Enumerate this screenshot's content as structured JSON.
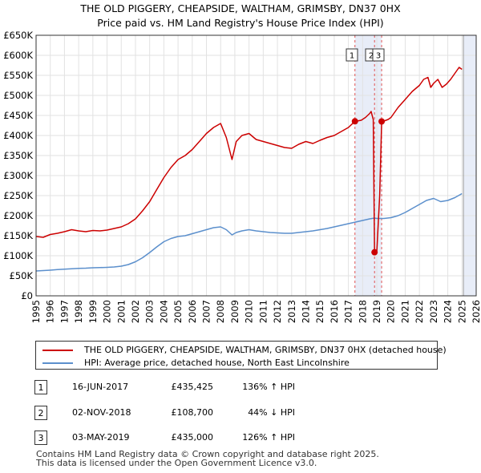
{
  "title_line1": "THE OLD PIGGERY, CHEAPSIDE, WALTHAM, GRIMSBY, DN37 0HX",
  "title_line2": "Price paid vs. HM Land Registry's House Price Index (HPI)",
  "legend": {
    "property_label": "THE OLD PIGGERY, CHEAPSIDE, WALTHAM, GRIMSBY, DN37 0HX (detached house)",
    "hpi_label": "HPI: Average price, detached house, North East Lincolnshire"
  },
  "sales": [
    {
      "num": "1",
      "date": "16-JUN-2017",
      "price": "£435,425",
      "hpi": "136% ↑ HPI"
    },
    {
      "num": "2",
      "date": "02-NOV-2018",
      "price": "£108,700",
      "hpi": "44% ↓ HPI"
    },
    {
      "num": "3",
      "date": "03-MAY-2019",
      "price": "£435,000",
      "hpi": "126% ↑ HPI"
    }
  ],
  "footer_line1": "Contains HM Land Registry data © Crown copyright and database right 2025.",
  "footer_line2": "This data is licensed under the Open Government Licence v3.0.",
  "colors": {
    "property": "#cc0000",
    "hpi": "#5b8fcc",
    "shade": "#e8edf8",
    "future": "#e8edf8",
    "grid": "#e2e2e2",
    "vline": "#e05555"
  },
  "chart_data": {
    "type": "line",
    "xlim": [
      1995,
      2026
    ],
    "ylim": [
      0,
      650000
    ],
    "x_ticks": [
      1995,
      1996,
      1997,
      1998,
      1999,
      2000,
      2001,
      2002,
      2003,
      2004,
      2005,
      2006,
      2007,
      2008,
      2009,
      2010,
      2011,
      2012,
      2013,
      2014,
      2015,
      2016,
      2017,
      2018,
      2019,
      2020,
      2021,
      2022,
      2023,
      2024,
      2025,
      2026
    ],
    "x_tick_labels": [
      "1995",
      "1996",
      "1997",
      "1998",
      "1999",
      "2000",
      "2001",
      "2002",
      "2003",
      "2004",
      "2005",
      "2006",
      "2007",
      "2008",
      "2009",
      "2010",
      "2011",
      "2012",
      "2013",
      "2014",
      "2015",
      "2016",
      "2017",
      "2018",
      "2019",
      "2020",
      "2021",
      "2022",
      "2023",
      "2024",
      "2025",
      "2026"
    ],
    "y_ticks": [
      0,
      50000,
      100000,
      150000,
      200000,
      250000,
      300000,
      350000,
      400000,
      450000,
      500000,
      550000,
      600000,
      650000
    ],
    "y_tick_labels": [
      "£0",
      "£50K",
      "£100K",
      "£150K",
      "£200K",
      "£250K",
      "£300K",
      "£350K",
      "£400K",
      "£450K",
      "£500K",
      "£550K",
      "£600K",
      "£650K"
    ],
    "shaded_range": [
      2017.46,
      2019.34
    ],
    "future_from": 2025.1,
    "sale_markers": [
      {
        "label": "1",
        "x": 2017.46,
        "y": 435425
      },
      {
        "label": "2",
        "x": 2018.84,
        "y": 108700
      },
      {
        "label": "3",
        "x": 2019.34,
        "y": 435000
      }
    ],
    "series": [
      {
        "name": "THE OLD PIGGERY, CHEAPSIDE, WALTHAM, GRIMSBY, DN37 0HX (detached house)",
        "x": [
          1995.0,
          1995.5,
          1996.0,
          1996.5,
          1997.0,
          1997.5,
          1998.0,
          1998.5,
          1999.0,
          1999.5,
          2000.0,
          2000.5,
          2001.0,
          2001.5,
          2002.0,
          2002.5,
          2003.0,
          2003.5,
          2004.0,
          2004.5,
          2005.0,
          2005.5,
          2006.0,
          2006.5,
          2007.0,
          2007.5,
          2008.0,
          2008.4,
          2008.8,
          2009.1,
          2009.5,
          2010.0,
          2010.5,
          2011.0,
          2011.5,
          2012.0,
          2012.5,
          2013.0,
          2013.5,
          2014.0,
          2014.5,
          2015.0,
          2015.5,
          2016.0,
          2016.5,
          2017.0,
          2017.46,
          2017.6,
          2017.9,
          2018.2,
          2018.5,
          2018.6,
          2018.75,
          2018.84,
          2019.0,
          2019.2,
          2019.34,
          2019.5,
          2019.8,
          2020.0,
          2020.5,
          2021.0,
          2021.5,
          2022.0,
          2022.3,
          2022.6,
          2022.8,
          2023.0,
          2023.3,
          2023.6,
          2023.9,
          2024.2,
          2024.5,
          2024.8,
          2025.0
        ],
        "y": [
          148000,
          146000,
          153000,
          156000,
          160000,
          165000,
          162000,
          160000,
          163000,
          162000,
          164000,
          168000,
          172000,
          180000,
          192000,
          212000,
          235000,
          265000,
          295000,
          320000,
          340000,
          350000,
          365000,
          385000,
          405000,
          420000,
          430000,
          395000,
          340000,
          385000,
          400000,
          405000,
          390000,
          385000,
          380000,
          375000,
          370000,
          368000,
          378000,
          385000,
          380000,
          388000,
          395000,
          400000,
          410000,
          420000,
          435425,
          436000,
          438000,
          445000,
          455000,
          460000,
          440000,
          108700,
          108700,
          250000,
          435000,
          436000,
          440000,
          445000,
          470000,
          490000,
          510000,
          525000,
          540000,
          545000,
          520000,
          530000,
          540000,
          520000,
          528000,
          540000,
          555000,
          570000,
          565000
        ]
      },
      {
        "name": "HPI: Average price, detached house, North East Lincolnshire",
        "x": [
          1995.0,
          1995.5,
          1996.0,
          1996.5,
          1997.0,
          1997.5,
          1998.0,
          1998.5,
          1999.0,
          1999.5,
          2000.0,
          2000.5,
          2001.0,
          2001.5,
          2002.0,
          2002.5,
          2003.0,
          2003.5,
          2004.0,
          2004.5,
          2005.0,
          2005.5,
          2006.0,
          2006.5,
          2007.0,
          2007.5,
          2008.0,
          2008.4,
          2008.8,
          2009.1,
          2009.5,
          2010.0,
          2010.5,
          2011.0,
          2011.5,
          2012.0,
          2012.5,
          2013.0,
          2013.5,
          2014.0,
          2014.5,
          2015.0,
          2015.5,
          2016.0,
          2016.5,
          2017.0,
          2017.5,
          2018.0,
          2018.5,
          2018.84,
          2019.0,
          2019.5,
          2020.0,
          2020.5,
          2021.0,
          2021.5,
          2022.0,
          2022.5,
          2023.0,
          2023.5,
          2024.0,
          2024.5,
          2025.0
        ],
        "y": [
          62000,
          63000,
          64000,
          65500,
          66500,
          67500,
          68500,
          69000,
          70000,
          70500,
          71000,
          72000,
          74000,
          78000,
          85000,
          95000,
          108000,
          122000,
          135000,
          143000,
          148000,
          150000,
          155000,
          160000,
          165000,
          170000,
          172000,
          165000,
          152000,
          158000,
          162000,
          165000,
          162000,
          160000,
          158000,
          157000,
          156000,
          156000,
          158000,
          160000,
          162000,
          165000,
          168000,
          172000,
          176000,
          180000,
          184000,
          188000,
          192000,
          194000,
          193000,
          193000,
          195000,
          200000,
          208000,
          218000,
          228000,
          238000,
          243000,
          235000,
          238000,
          245000,
          255000
        ]
      }
    ]
  }
}
